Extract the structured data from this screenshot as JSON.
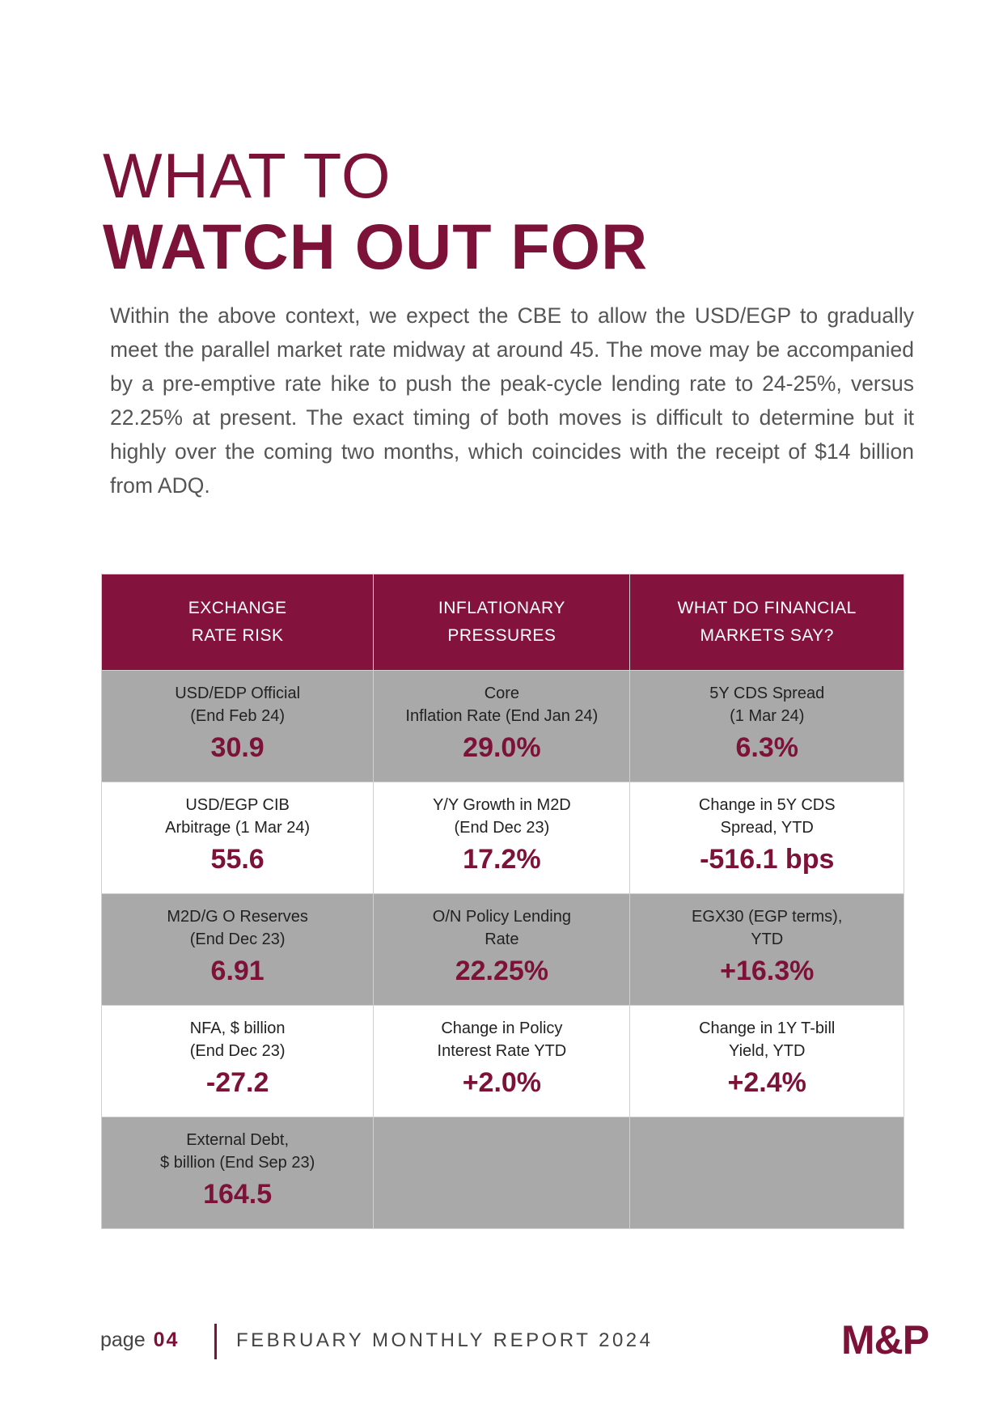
{
  "title": {
    "line1": "WHAT TO",
    "line2": "WATCH OUT FOR"
  },
  "intro": "Within the above context, we expect the CBE to allow the USD/EGP to gradually meet the parallel market rate midway at around 45. The move may be accompanied by a pre-emptive rate hike to push the peak-cycle lending rate to 24-25%, versus 22.25% at present. The exact timing of both moves is difficult to determine but it highly over the coming two months, which coincides with the receipt of $14 billion from ADQ.",
  "table": {
    "headers": [
      "EXCHANGE\nRATE RISK",
      "INFLATIONARY\nPRESSURES",
      "WHAT DO FINANCIAL\nMARKETS SAY?"
    ],
    "rows": [
      [
        {
          "label": "USD/EDP Official\n(End Feb 24)",
          "value": "30.9"
        },
        {
          "label": "Core\nInflation Rate (End Jan 24)",
          "value": "29.0%"
        },
        {
          "label": "5Y CDS Spread\n(1 Mar 24)",
          "value": "6.3%"
        }
      ],
      [
        {
          "label": "USD/EGP CIB\nArbitrage (1 Mar 24)",
          "value": "55.6"
        },
        {
          "label": "Y/Y Growth in M2D\n(End Dec 23)",
          "value": "17.2%"
        },
        {
          "label": "Change in 5Y CDS\nSpread, YTD",
          "value": "-516.1 bps"
        }
      ],
      [
        {
          "label": "M2D/G O Reserves\n(End Dec 23)",
          "value": "6.91"
        },
        {
          "label": "O/N Policy Lending\nRate",
          "value": "22.25%"
        },
        {
          "label": "EGX30 (EGP terms),\nYTD",
          "value": "+16.3%"
        }
      ],
      [
        {
          "label": "NFA, $ billion\n(End Dec 23)",
          "value": "-27.2"
        },
        {
          "label": "Change in Policy\nInterest Rate YTD",
          "value": "+2.0%"
        },
        {
          "label": "Change in 1Y T-bill\nYield, YTD",
          "value": "+2.4%"
        }
      ],
      [
        {
          "label": "External Debt,\n$ billion (End Sep 23)",
          "value": "164.5"
        },
        {
          "label": "",
          "value": ""
        },
        {
          "label": "",
          "value": ""
        }
      ]
    ]
  },
  "footer": {
    "page_word": "page",
    "page_number": "04",
    "report": "FEBRUARY MONTHLY REPORT 2024",
    "logo": "M&P"
  },
  "colors": {
    "brand": "#7d1239",
    "header_bg": "#83133d",
    "gray_row": "#a9a9a9"
  }
}
